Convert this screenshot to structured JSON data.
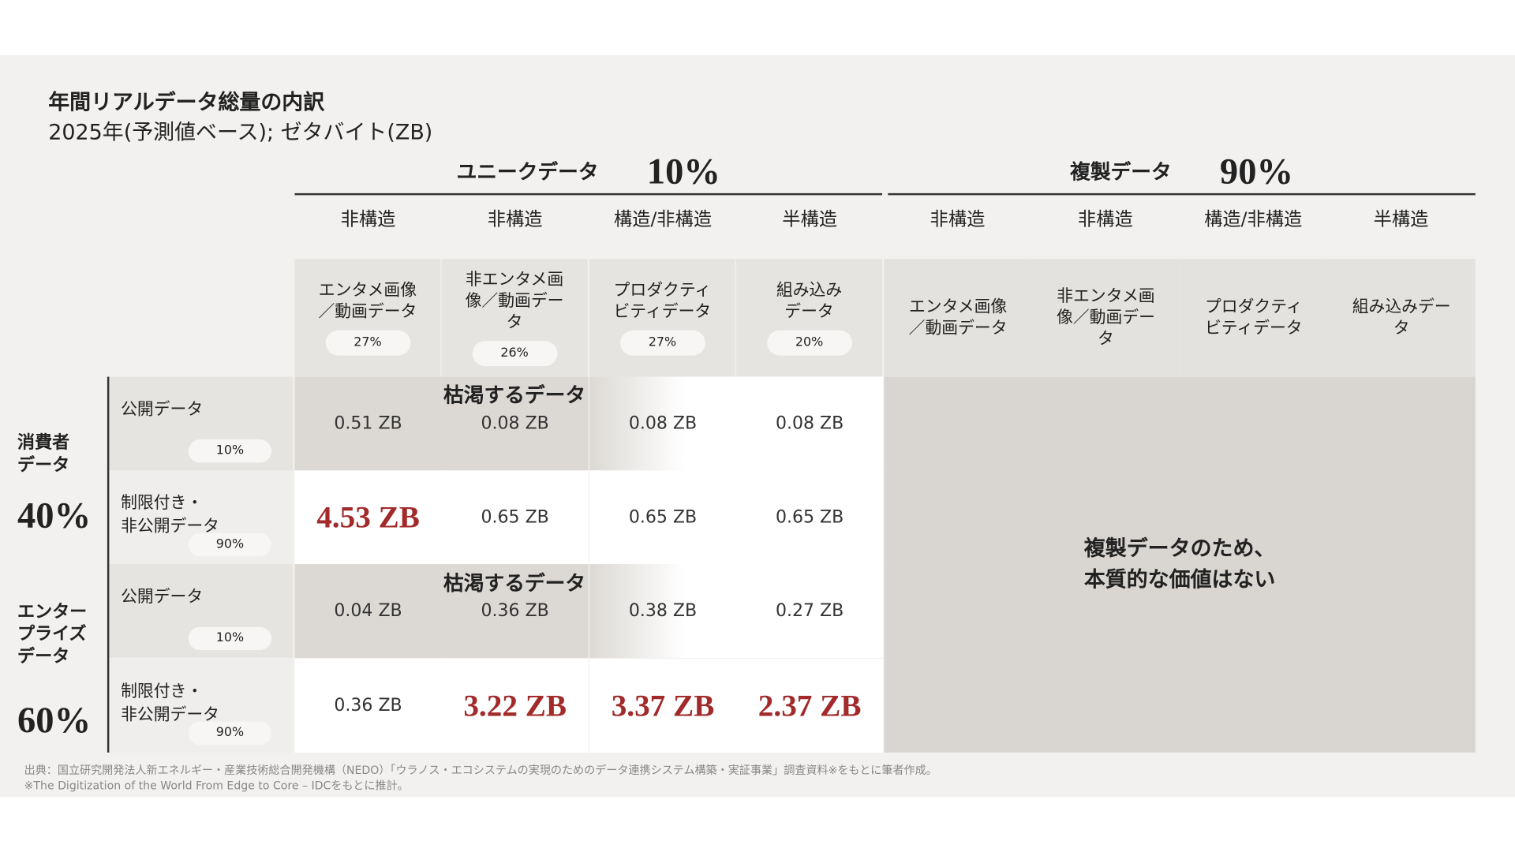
{
  "title": "年間リアルデータ総量の内訳",
  "subtitle": "2025年(予測値ベース); ゼタバイト(ZB)",
  "groups": [
    {
      "label": "ユニークデータ",
      "pct": "10%"
    },
    {
      "label": "複製データ",
      "pct": "90%"
    }
  ],
  "types": [
    "非構造",
    "非構造",
    "構造/非構造",
    "半構造",
    "非構造",
    "非構造",
    "構造/非構造",
    "半構造"
  ],
  "columns": [
    {
      "label1": "エンタメ画像",
      "label2": "／動画データ",
      "label3": "",
      "pct": "27%"
    },
    {
      "label1": "非エンタメ画",
      "label2": "像／動画デー",
      "label3": "タ",
      "pct": "26%"
    },
    {
      "label1": "プロダクティ",
      "label2": "ビティデータ",
      "label3": "",
      "pct": "27%"
    },
    {
      "label1": "組み込み",
      "label2": "データ",
      "label3": "",
      "pct": "20%"
    }
  ],
  "dup_columns": [
    {
      "label1": "エンタメ画像",
      "label2": "／動画データ",
      "label3": ""
    },
    {
      "label1": "非エンタメ画",
      "label2": "像／動画デー",
      "label3": "タ"
    },
    {
      "label1": "プロダクティ",
      "label2": "ビティデータ",
      "label3": ""
    },
    {
      "label1": "組み込みデー",
      "label2": "タ",
      "label3": ""
    }
  ],
  "categories": [
    {
      "label1": "消費者",
      "label2": "データ",
      "label3": "",
      "pct": "40%"
    },
    {
      "label1": "エンター",
      "label2": "プライズ",
      "label3": "データ",
      "pct": "60%"
    }
  ],
  "rows": [
    {
      "label1": "公開データ",
      "label2": "",
      "pct": "10%",
      "values": [
        "0.51 ZB",
        "0.08 ZB",
        "0.08 ZB",
        "0.08 ZB"
      ]
    },
    {
      "label1": "制限付き・",
      "label2": "非公開データ",
      "pct": "90%",
      "values": [
        "4.53 ZB",
        "0.65 ZB",
        "0.65 ZB",
        "0.65 ZB"
      ]
    },
    {
      "label1": "公開データ",
      "label2": "",
      "pct": "10%",
      "values": [
        "0.04 ZB",
        "0.36 ZB",
        "0.38 ZB",
        "0.27 ZB"
      ]
    },
    {
      "label1": "制限付き・",
      "label2": "非公開データ",
      "pct": "90%",
      "values": [
        "0.36 ZB",
        "3.22 ZB",
        "3.37 ZB",
        "2.37 ZB"
      ]
    }
  ],
  "depleting_label": "枯渇するデータ",
  "dup_message1": "複製データのため、",
  "dup_message2": "本質的な価値はない",
  "footnote1": "出典：国立研究開発法人新エネルギー・産業技術総合開発機構（NEDO）「ウラノス・エコシステムの実現のためのデータ連携システム構築・実証事業」調査資料※をもとに筆者作成。",
  "footnote2": "※The Digitization of the World From Edge to Core – IDCをもとに推計。",
  "colors": {
    "highlight": "#a22a2a",
    "background": "#f2f1ef",
    "scarce": "#dcd9d5",
    "duplicate": "#d9d6d2"
  }
}
